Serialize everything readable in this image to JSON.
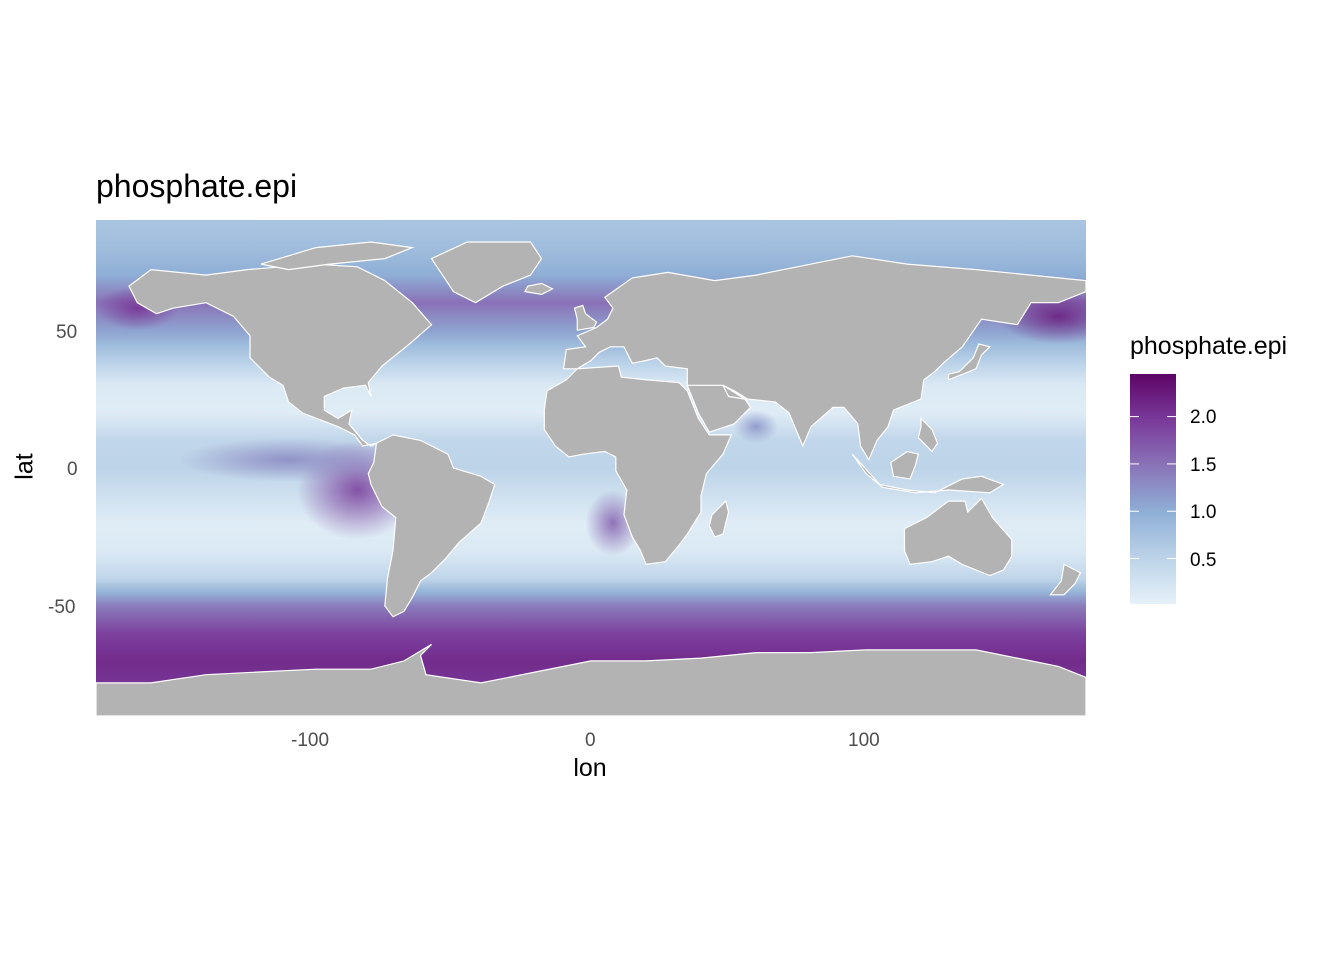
{
  "chart_data": {
    "type": "heatmap",
    "title": "phosphate.epi",
    "xlabel": "lon",
    "ylabel": "lat",
    "xlim": [
      -180,
      180
    ],
    "ylim": [
      -90,
      90
    ],
    "x_ticks": [
      -100,
      0,
      100
    ],
    "y_ticks": [
      50,
      0,
      -50
    ],
    "tick_labels_x": [
      "-100",
      "0",
      "100"
    ],
    "tick_labels_y": [
      "50",
      "0",
      "-50"
    ],
    "land_color": "#b3b3b3",
    "legend": {
      "title": "phosphate.epi",
      "placement": "right",
      "breaks": [
        0.5,
        1.0,
        1.5,
        2.0
      ],
      "break_labels": [
        "0.5",
        "1.0",
        "1.5",
        "2.0"
      ],
      "range": [
        0.02,
        2.45
      ],
      "colors": [
        "#e6f1f9",
        "#bcd3e8",
        "#8fafd6",
        "#8a74b8",
        "#7a3a9a",
        "#5c0566"
      ]
    },
    "latitude_profile": {
      "lat": [
        90,
        80,
        70,
        60,
        50,
        40,
        30,
        20,
        10,
        0,
        -10,
        -20,
        -30,
        -40,
        -50,
        -60,
        -70,
        -80
      ],
      "phosphate": [
        0.7,
        0.8,
        1.0,
        1.5,
        1.1,
        0.6,
        0.15,
        0.1,
        0.45,
        0.5,
        0.3,
        0.1,
        0.15,
        0.45,
        1.4,
        1.9,
        2.1,
        2.0
      ]
    }
  }
}
